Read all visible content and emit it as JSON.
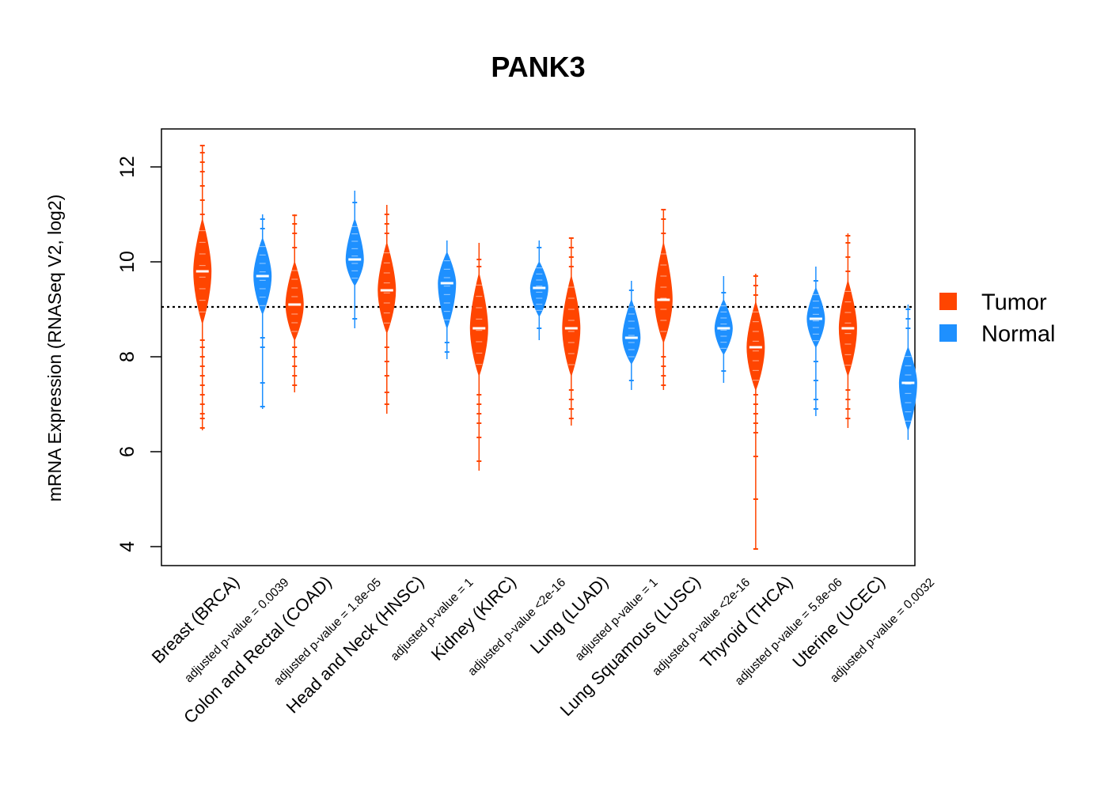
{
  "chart_data": {
    "type": "violin",
    "title": "PANK3",
    "ylabel": "mRNA Expression (RNASeq V2, log2)",
    "ylim": [
      3.6,
      12.8
    ],
    "yticks": [
      4,
      6,
      8,
      10,
      12
    ],
    "reference_line": 9.05,
    "grid": false,
    "legend_position": "right",
    "legend": [
      {
        "name": "Tumor",
        "color": "#FF4500"
      },
      {
        "name": "Normal",
        "color": "#1E90FF"
      }
    ],
    "groups": [
      {
        "name": "Breast (BRCA)",
        "pvalue": "adjusted p-value = 0.0039",
        "tumor": {
          "median": 9.8,
          "body": [
            8.7,
            10.9
          ],
          "whisker": [
            6.45,
            12.45
          ],
          "outliers": [
            6.5,
            6.7,
            6.8,
            7.0,
            7.2,
            7.4,
            7.6,
            7.8,
            8.0,
            8.2,
            8.35,
            11.0,
            11.3,
            11.6,
            11.9,
            12.1,
            12.3,
            12.45
          ]
        },
        "normal": {
          "median": 9.7,
          "body": [
            8.9,
            10.5
          ],
          "whisker": [
            6.9,
            11.0
          ],
          "outliers": [
            6.95,
            7.45,
            8.2,
            8.4,
            10.7,
            10.9
          ]
        }
      },
      {
        "name": "Colon and Rectal (COAD)",
        "pvalue": "adjusted p-value = 1.8e-05",
        "tumor": {
          "median": 9.1,
          "body": [
            8.35,
            10.0
          ],
          "whisker": [
            7.25,
            11.0
          ],
          "outliers": [
            7.4,
            7.6,
            7.8,
            8.0,
            8.2,
            10.3,
            10.6,
            10.8,
            10.98
          ]
        },
        "normal": {
          "median": 10.05,
          "body": [
            9.5,
            10.9
          ],
          "whisker": [
            8.6,
            11.5
          ],
          "outliers": [
            8.8,
            11.25
          ]
        }
      },
      {
        "name": "Head and Neck (HNSC)",
        "pvalue": "adjusted p-value = 1",
        "tumor": {
          "median": 9.4,
          "body": [
            8.5,
            10.4
          ],
          "whisker": [
            6.8,
            11.2
          ],
          "outliers": [
            7.0,
            7.25,
            7.6,
            7.9,
            8.2,
            10.6,
            10.8,
            11.0
          ]
        },
        "normal": {
          "median": 9.55,
          "body": [
            8.6,
            10.2
          ],
          "whisker": [
            7.95,
            10.45
          ],
          "outliers": [
            8.1,
            8.3
          ]
        }
      },
      {
        "name": "Kidney (KIRC)",
        "pvalue": "adjusted p-value <2e-16",
        "tumor": {
          "median": 8.6,
          "body": [
            7.6,
            9.75
          ],
          "whisker": [
            5.6,
            10.4
          ],
          "outliers": [
            5.8,
            6.3,
            6.6,
            6.8,
            7.0,
            7.2,
            9.9,
            10.05
          ]
        },
        "normal": {
          "median": 9.45,
          "body": [
            8.85,
            10.0
          ],
          "whisker": [
            8.35,
            10.45
          ],
          "outliers": [
            8.6,
            10.3
          ]
        }
      },
      {
        "name": "Lung (LUAD)",
        "pvalue": "adjusted p-value = 1",
        "tumor": {
          "median": 8.6,
          "body": [
            7.6,
            9.7
          ],
          "whisker": [
            6.55,
            10.5
          ],
          "outliers": [
            6.7,
            6.9,
            7.1,
            7.3,
            9.9,
            10.1,
            10.3,
            10.5
          ]
        },
        "normal": {
          "median": 8.4,
          "body": [
            7.85,
            9.2
          ],
          "whisker": [
            7.3,
            9.6
          ],
          "outliers": [
            7.5,
            9.4
          ]
        }
      },
      {
        "name": "Lung Squamous (LUSC)",
        "pvalue": "adjusted p-value <2e-16",
        "tumor": {
          "median": 9.2,
          "body": [
            8.3,
            10.4
          ],
          "whisker": [
            7.3,
            11.1
          ],
          "outliers": [
            7.4,
            7.6,
            7.8,
            8.0,
            10.6,
            10.9,
            11.1
          ]
        },
        "normal": {
          "median": 8.6,
          "body": [
            8.05,
            9.2
          ],
          "whisker": [
            7.45,
            9.7
          ],
          "outliers": [
            7.7,
            9.35
          ]
        }
      },
      {
        "name": "Thyroid (THCA)",
        "pvalue": "adjusted p-value = 5.8e-06",
        "tumor": {
          "median": 8.2,
          "body": [
            7.3,
            9.15
          ],
          "whisker": [
            3.95,
            9.75
          ],
          "outliers": [
            3.95,
            5.0,
            5.9,
            6.4,
            6.6,
            6.8,
            7.0,
            7.2,
            9.3,
            9.5,
            9.7
          ]
        },
        "normal": {
          "median": 8.8,
          "body": [
            8.2,
            9.45
          ],
          "whisker": [
            6.75,
            9.9
          ],
          "outliers": [
            6.9,
            7.1,
            7.5,
            7.9,
            9.6
          ]
        }
      },
      {
        "name": "Uterine (UCEC)",
        "pvalue": "adjusted p-value = 0.0032",
        "tumor": {
          "median": 8.6,
          "body": [
            7.6,
            9.6
          ],
          "whisker": [
            6.5,
            10.6
          ],
          "outliers": [
            6.7,
            6.9,
            7.1,
            7.3,
            9.8,
            10.1,
            10.4,
            10.55
          ]
        },
        "normal": {
          "median": 7.45,
          "body": [
            6.45,
            8.2
          ],
          "whisker": [
            6.25,
            9.1
          ],
          "outliers": [
            8.6,
            8.8,
            9.0
          ]
        }
      }
    ]
  }
}
